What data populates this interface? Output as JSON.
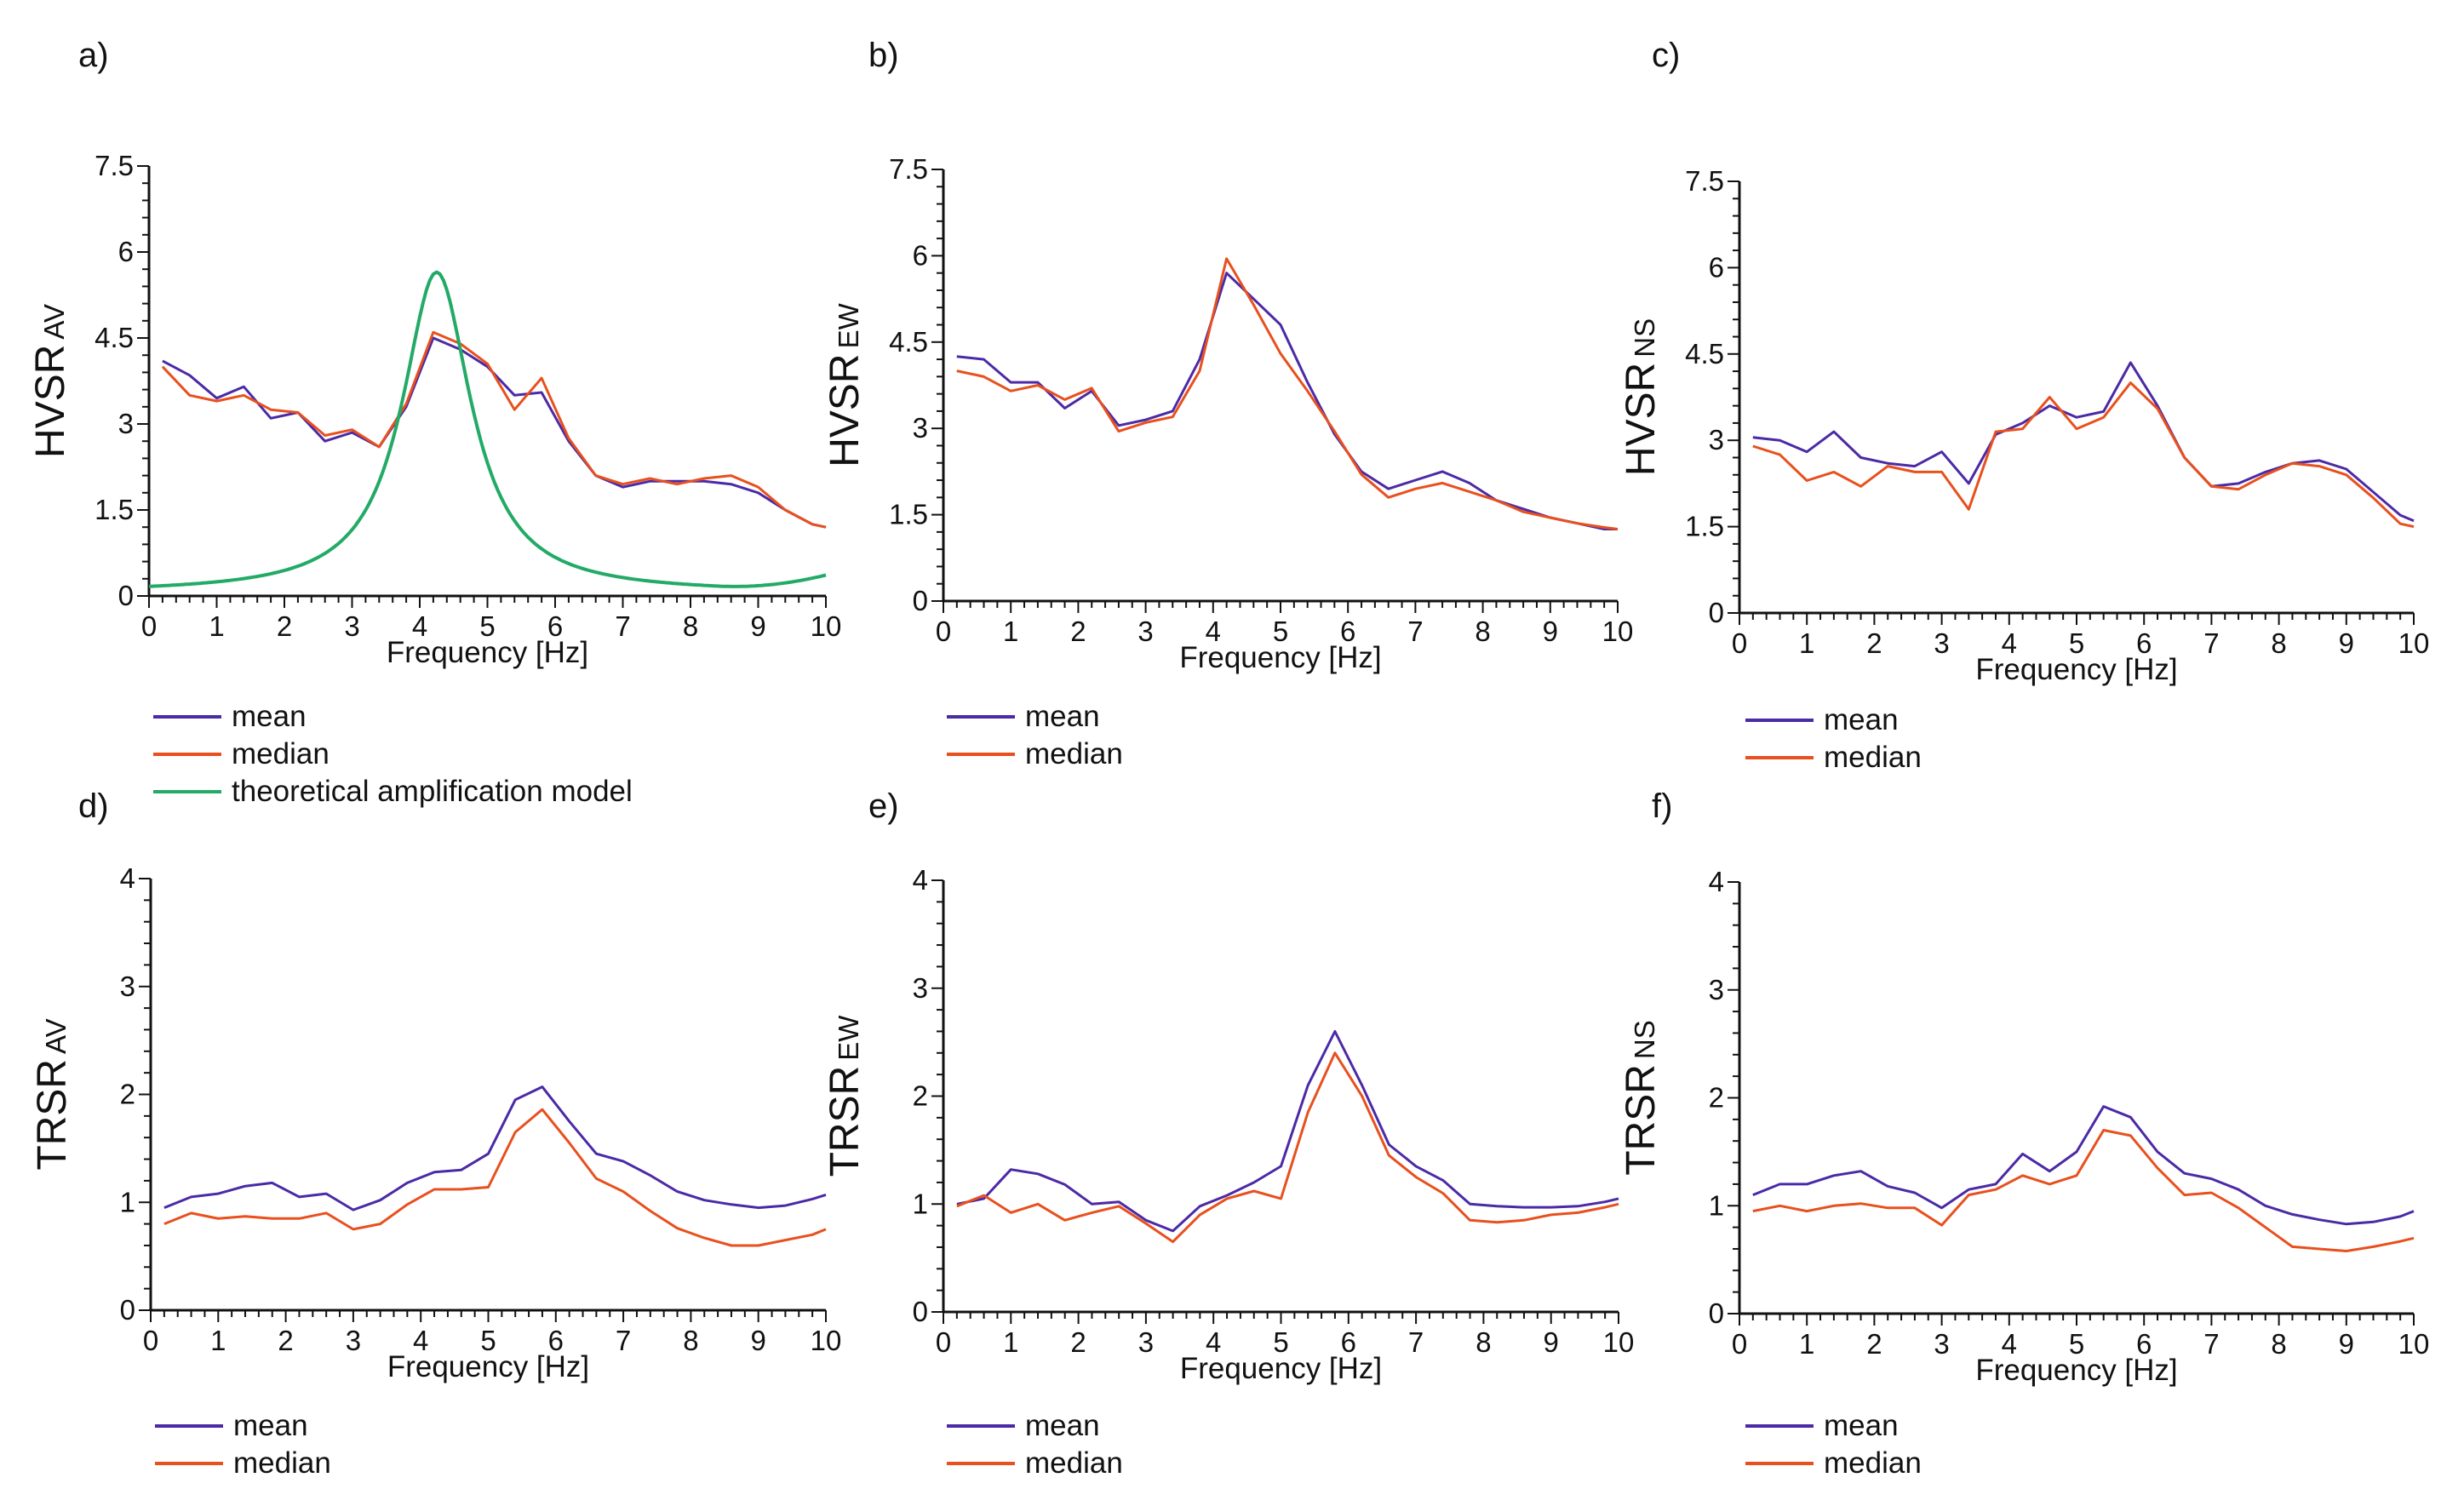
{
  "figure": {
    "colors": {
      "mean": "#4b2aa6",
      "median": "#e8501e",
      "theoretical": "#22aa66",
      "axis": "#111111"
    }
  },
  "chart_data": [
    {
      "id": "a",
      "panel_label": "a)",
      "type": "line",
      "ylabel_main": "HVSR",
      "ylabel_sub": "AV",
      "xlabel": "Frequency [Hz]",
      "xlim": [
        0,
        10
      ],
      "ylim": [
        0,
        7.5
      ],
      "xticks": [
        "0",
        "1",
        "2",
        "3",
        "4",
        "5",
        "6",
        "7",
        "8",
        "9",
        "10"
      ],
      "yticks": [
        "0",
        "1.5",
        "3",
        "4.5",
        "6",
        "7.5"
      ],
      "ytick_values": [
        0,
        1.5,
        3,
        4.5,
        6,
        7.5
      ],
      "x": [
        0.2,
        0.6,
        1.0,
        1.4,
        1.8,
        2.2,
        2.6,
        3.0,
        3.4,
        3.8,
        4.2,
        4.6,
        5.0,
        5.4,
        5.8,
        6.2,
        6.6,
        7.0,
        7.4,
        7.8,
        8.2,
        8.6,
        9.0,
        9.4,
        9.8,
        10.0
      ],
      "series": [
        {
          "name": "mean",
          "color": "#4b2aa6",
          "values": [
            4.1,
            3.85,
            3.45,
            3.65,
            3.1,
            3.2,
            2.7,
            2.85,
            2.6,
            3.3,
            4.5,
            4.3,
            4.0,
            3.5,
            3.55,
            2.7,
            2.1,
            1.9,
            2.0,
            2.0,
            2.0,
            1.95,
            1.8,
            1.5,
            1.25,
            1.2
          ]
        },
        {
          "name": "median",
          "color": "#e8501e",
          "values": [
            4.0,
            3.5,
            3.4,
            3.5,
            3.25,
            3.2,
            2.8,
            2.9,
            2.6,
            3.35,
            4.6,
            4.4,
            4.05,
            3.25,
            3.8,
            2.75,
            2.1,
            1.95,
            2.05,
            1.95,
            2.05,
            2.1,
            1.9,
            1.5,
            1.25,
            1.2
          ]
        },
        {
          "name": "theoretical amplification model",
          "color": "#22aa66",
          "model": {
            "amplitude": 5.65,
            "peak": 4.25,
            "width": 0.62,
            "base": 0.05,
            "rise_start": 8.4,
            "rise_end": 0.25
          }
        }
      ],
      "legend": [
        "mean",
        "median",
        "theoretical amplification model"
      ]
    },
    {
      "id": "b",
      "panel_label": "b)",
      "type": "line",
      "ylabel_main": "HVSR",
      "ylabel_sub": "EW",
      "xlabel": "Frequency [Hz]",
      "xlim": [
        0,
        10
      ],
      "ylim": [
        0,
        7.5
      ],
      "xticks": [
        "0",
        "1",
        "2",
        "3",
        "4",
        "5",
        "6",
        "7",
        "8",
        "9",
        "10"
      ],
      "yticks": [
        "0",
        "1.5",
        "3",
        "4.5",
        "6",
        "7.5"
      ],
      "ytick_values": [
        0,
        1.5,
        3,
        4.5,
        6,
        7.5
      ],
      "x": [
        0.2,
        0.6,
        1.0,
        1.4,
        1.8,
        2.2,
        2.6,
        3.0,
        3.4,
        3.8,
        4.2,
        4.6,
        5.0,
        5.4,
        5.8,
        6.2,
        6.6,
        7.0,
        7.4,
        7.8,
        8.2,
        8.6,
        9.0,
        9.4,
        9.8,
        10.0
      ],
      "series": [
        {
          "name": "mean",
          "color": "#4b2aa6",
          "values": [
            4.25,
            4.2,
            3.8,
            3.8,
            3.35,
            3.65,
            3.05,
            3.15,
            3.3,
            4.2,
            5.7,
            5.25,
            4.8,
            3.8,
            2.9,
            2.25,
            1.95,
            2.1,
            2.25,
            2.05,
            1.75,
            1.6,
            1.45,
            1.35,
            1.25,
            1.25
          ]
        },
        {
          "name": "median",
          "color": "#e8501e",
          "values": [
            4.0,
            3.9,
            3.65,
            3.75,
            3.5,
            3.7,
            2.95,
            3.1,
            3.2,
            4.0,
            5.95,
            5.15,
            4.3,
            3.65,
            2.95,
            2.2,
            1.8,
            1.95,
            2.05,
            1.9,
            1.75,
            1.55,
            1.45,
            1.35,
            1.28,
            1.25
          ]
        }
      ],
      "legend": [
        "mean",
        "median"
      ]
    },
    {
      "id": "c",
      "panel_label": "c)",
      "type": "line",
      "ylabel_main": "HVSR",
      "ylabel_sub": "NS",
      "xlabel": "Frequency [Hz]",
      "xlim": [
        0,
        10
      ],
      "ylim": [
        0,
        7.5
      ],
      "xticks": [
        "0",
        "1",
        "2",
        "3",
        "4",
        "5",
        "6",
        "7",
        "8",
        "9",
        "10"
      ],
      "yticks": [
        "0",
        "1.5",
        "3",
        "4.5",
        "6",
        "7.5"
      ],
      "ytick_values": [
        0,
        1.5,
        3,
        4.5,
        6,
        7.5
      ],
      "x": [
        0.2,
        0.6,
        1.0,
        1.4,
        1.8,
        2.2,
        2.6,
        3.0,
        3.4,
        3.8,
        4.2,
        4.6,
        5.0,
        5.4,
        5.8,
        6.2,
        6.6,
        7.0,
        7.4,
        7.8,
        8.2,
        8.6,
        9.0,
        9.4,
        9.8,
        10.0
      ],
      "series": [
        {
          "name": "mean",
          "color": "#4b2aa6",
          "values": [
            3.05,
            3.0,
            2.8,
            3.15,
            2.7,
            2.6,
            2.55,
            2.8,
            2.25,
            3.1,
            3.3,
            3.6,
            3.4,
            3.5,
            4.35,
            3.6,
            2.7,
            2.2,
            2.25,
            2.45,
            2.6,
            2.65,
            2.5,
            2.1,
            1.7,
            1.6
          ]
        },
        {
          "name": "median",
          "color": "#e8501e",
          "values": [
            2.9,
            2.75,
            2.3,
            2.45,
            2.2,
            2.55,
            2.45,
            2.45,
            1.8,
            3.15,
            3.2,
            3.75,
            3.2,
            3.4,
            4.0,
            3.55,
            2.7,
            2.2,
            2.15,
            2.4,
            2.6,
            2.55,
            2.4,
            2.0,
            1.55,
            1.5
          ]
        }
      ],
      "legend": [
        "mean",
        "median"
      ]
    },
    {
      "id": "d",
      "panel_label": "d)",
      "type": "line",
      "ylabel_main": "TRSR",
      "ylabel_sub": "AV",
      "xlabel": "Frequency [Hz]",
      "xlim": [
        0,
        10
      ],
      "ylim": [
        0,
        4
      ],
      "xticks": [
        "0",
        "1",
        "2",
        "3",
        "4",
        "5",
        "6",
        "7",
        "8",
        "9",
        "10"
      ],
      "yticks": [
        "0",
        "1",
        "2",
        "3",
        "4"
      ],
      "ytick_values": [
        0,
        1,
        2,
        3,
        4
      ],
      "x": [
        0.2,
        0.6,
        1.0,
        1.4,
        1.8,
        2.2,
        2.6,
        3.0,
        3.4,
        3.8,
        4.2,
        4.6,
        5.0,
        5.4,
        5.8,
        6.2,
        6.6,
        7.0,
        7.4,
        7.8,
        8.2,
        8.6,
        9.0,
        9.4,
        9.8,
        10.0
      ],
      "series": [
        {
          "name": "mean",
          "color": "#4b2aa6",
          "values": [
            0.95,
            1.05,
            1.08,
            1.15,
            1.18,
            1.05,
            1.08,
            0.93,
            1.02,
            1.18,
            1.28,
            1.3,
            1.45,
            1.95,
            2.07,
            1.75,
            1.45,
            1.38,
            1.25,
            1.1,
            1.02,
            0.98,
            0.95,
            0.97,
            1.03,
            1.07
          ]
        },
        {
          "name": "median",
          "color": "#e8501e",
          "values": [
            0.8,
            0.9,
            0.85,
            0.87,
            0.85,
            0.85,
            0.9,
            0.75,
            0.8,
            0.98,
            1.12,
            1.12,
            1.14,
            1.65,
            1.86,
            1.55,
            1.22,
            1.1,
            0.92,
            0.76,
            0.67,
            0.6,
            0.6,
            0.65,
            0.7,
            0.75
          ]
        }
      ],
      "legend": [
        "mean",
        "median"
      ]
    },
    {
      "id": "e",
      "panel_label": "e)",
      "type": "line",
      "ylabel_main": "TRSR",
      "ylabel_sub": "EW",
      "xlabel": "Frequency [Hz]",
      "xlim": [
        0,
        10
      ],
      "ylim": [
        0,
        4
      ],
      "xticks": [
        "0",
        "1",
        "2",
        "3",
        "4",
        "5",
        "6",
        "7",
        "8",
        "9",
        "10"
      ],
      "yticks": [
        "0",
        "1",
        "2",
        "3",
        "4"
      ],
      "ytick_values": [
        0,
        1,
        2,
        3,
        4
      ],
      "x": [
        0.2,
        0.6,
        1.0,
        1.4,
        1.8,
        2.2,
        2.6,
        3.0,
        3.4,
        3.8,
        4.2,
        4.6,
        5.0,
        5.4,
        5.8,
        6.2,
        6.6,
        7.0,
        7.4,
        7.8,
        8.2,
        8.6,
        9.0,
        9.4,
        9.8,
        10.0
      ],
      "series": [
        {
          "name": "mean",
          "color": "#4b2aa6",
          "values": [
            1.0,
            1.05,
            1.32,
            1.28,
            1.18,
            1.0,
            1.02,
            0.85,
            0.75,
            0.98,
            1.08,
            1.2,
            1.35,
            2.1,
            2.6,
            2.1,
            1.55,
            1.35,
            1.22,
            1.0,
            0.98,
            0.97,
            0.97,
            0.98,
            1.02,
            1.05
          ]
        },
        {
          "name": "median",
          "color": "#e8501e",
          "values": [
            0.98,
            1.08,
            0.92,
            1.0,
            0.85,
            0.92,
            0.98,
            0.82,
            0.65,
            0.9,
            1.05,
            1.12,
            1.05,
            1.85,
            2.4,
            2.0,
            1.45,
            1.25,
            1.1,
            0.85,
            0.83,
            0.85,
            0.9,
            0.92,
            0.97,
            1.0
          ]
        }
      ],
      "legend": [
        "mean",
        "median"
      ]
    },
    {
      "id": "f",
      "panel_label": "f)",
      "type": "line",
      "ylabel_main": "TRSR",
      "ylabel_sub": "NS",
      "xlabel": "Frequency [Hz]",
      "xlim": [
        0,
        10
      ],
      "ylim": [
        0,
        4
      ],
      "xticks": [
        "0",
        "1",
        "2",
        "3",
        "4",
        "5",
        "6",
        "7",
        "8",
        "9",
        "10"
      ],
      "yticks": [
        "0",
        "1",
        "2",
        "3",
        "4"
      ],
      "ytick_values": [
        0,
        1,
        2,
        3,
        4
      ],
      "x": [
        0.2,
        0.6,
        1.0,
        1.4,
        1.8,
        2.2,
        2.6,
        3.0,
        3.4,
        3.8,
        4.2,
        4.6,
        5.0,
        5.4,
        5.8,
        6.2,
        6.6,
        7.0,
        7.4,
        7.8,
        8.2,
        8.6,
        9.0,
        9.4,
        9.8,
        10.0
      ],
      "series": [
        {
          "name": "mean",
          "color": "#4b2aa6",
          "values": [
            1.1,
            1.2,
            1.2,
            1.28,
            1.32,
            1.18,
            1.12,
            0.98,
            1.15,
            1.2,
            1.48,
            1.32,
            1.5,
            1.92,
            1.82,
            1.5,
            1.3,
            1.25,
            1.15,
            1.0,
            0.92,
            0.87,
            0.83,
            0.85,
            0.9,
            0.95
          ]
        },
        {
          "name": "median",
          "color": "#e8501e",
          "values": [
            0.95,
            1.0,
            0.95,
            1.0,
            1.02,
            0.98,
            0.98,
            0.82,
            1.1,
            1.15,
            1.28,
            1.2,
            1.28,
            1.7,
            1.65,
            1.35,
            1.1,
            1.12,
            0.98,
            0.8,
            0.62,
            0.6,
            0.58,
            0.62,
            0.67,
            0.7
          ]
        }
      ],
      "legend": [
        "mean",
        "median"
      ]
    }
  ]
}
